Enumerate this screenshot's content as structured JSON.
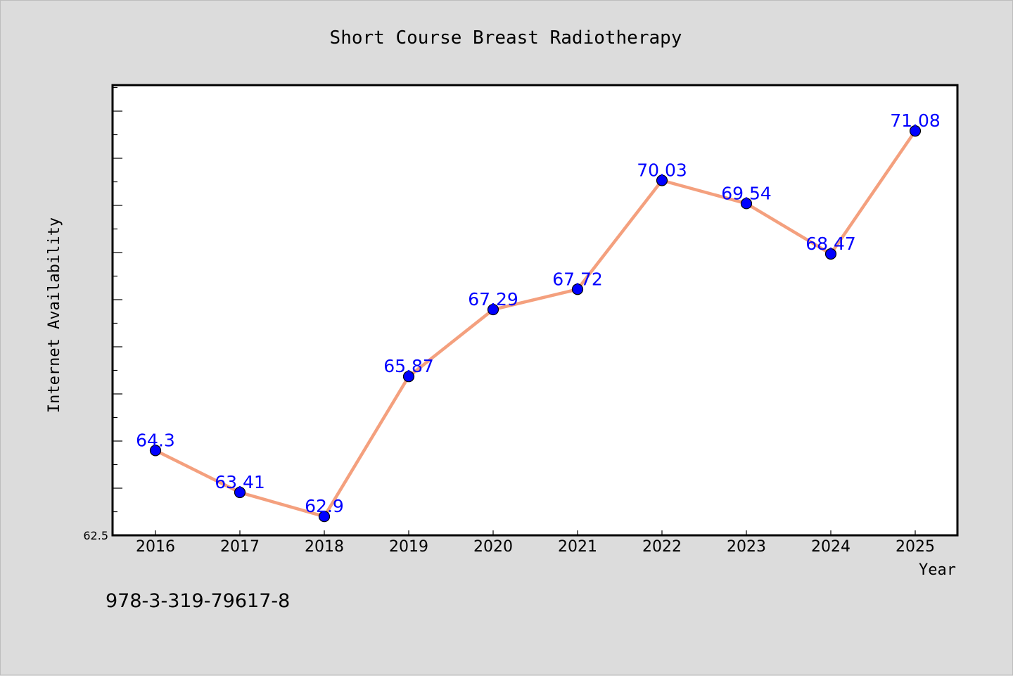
{
  "footer": {
    "text": "978-3-319-79617-8"
  },
  "colors": {
    "background": "#dcdcdc",
    "plot_background": "#ffffff",
    "line": "#f4a07e",
    "marker": "#0000ff",
    "label": "#0000ff"
  },
  "chart_data": {
    "type": "line",
    "title": "Short Course Breast Radiotherapy",
    "xlabel": "Year",
    "ylabel": "Internet Availability",
    "categories": [
      "2016",
      "2017",
      "2018",
      "2019",
      "2020",
      "2021",
      "2022",
      "2023",
      "2024",
      "2025"
    ],
    "series": [
      {
        "values": [
          64.3,
          63.41,
          62.9,
          65.87,
          67.29,
          67.72,
          70.03,
          69.54,
          68.47,
          71.08
        ],
        "labels": [
          "64.3",
          "63.41",
          "62.9",
          "65.87",
          "67.29",
          "67.72",
          "70.03",
          "69.54",
          "68.47",
          "71.08"
        ]
      }
    ],
    "ylim": [
      62.5,
      72.0
    ],
    "y_tick_labels": [
      "62.5"
    ],
    "y_minor_step": 0.5,
    "y_major_step": 1.0,
    "grid": false,
    "legend": "none"
  }
}
